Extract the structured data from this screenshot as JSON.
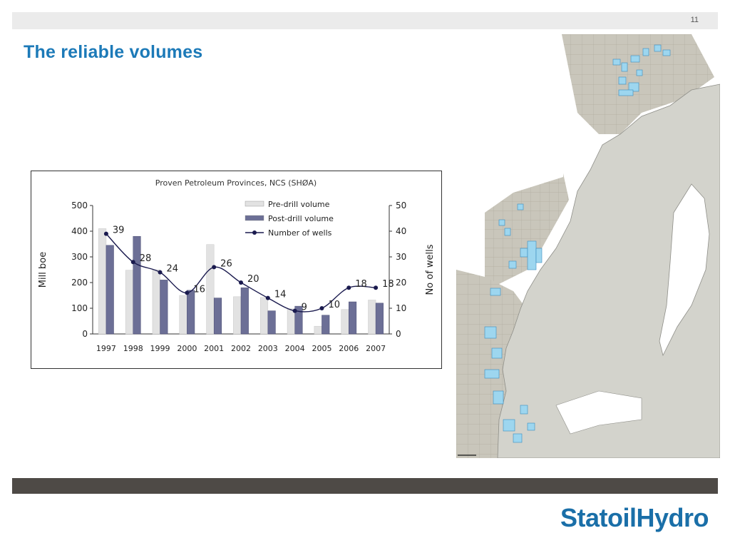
{
  "slide": {
    "page_number": "11",
    "title": "The reliable volumes",
    "logo_text": "StatoilHydro"
  },
  "colors": {
    "title": "#1c7ab8",
    "pre_drill_bar": "#e2e2e2",
    "post_drill_bar": "#6c6f96",
    "wells_line": "#1a1a4e",
    "footer_band": "#4e4a46",
    "map_sea": "#ffffff",
    "map_land": "#d0d0c8",
    "map_blocks": "#c9c6bb",
    "map_fields": "#9dd6ef"
  },
  "chart_data": {
    "type": "bar",
    "title": "Proven Petroleum Provinces, NCS (SHØA)",
    "categories": [
      "1997",
      "1998",
      "1999",
      "2000",
      "2001",
      "2002",
      "2003",
      "2004",
      "2005",
      "2006",
      "2007"
    ],
    "series": [
      {
        "name": "Pre-drill volume",
        "type": "bar",
        "axis": "left",
        "values": [
          410,
          248,
          250,
          150,
          348,
          145,
          142,
          98,
          30,
          95,
          132
        ]
      },
      {
        "name": "Post-drill volume",
        "type": "bar",
        "axis": "left",
        "values": [
          345,
          380,
          210,
          170,
          140,
          180,
          90,
          108,
          73,
          125,
          120
        ]
      },
      {
        "name": "Number of wells",
        "type": "line",
        "axis": "right",
        "values": [
          39,
          28,
          24,
          16,
          26,
          20,
          14,
          9,
          10,
          18,
          18
        ],
        "data_labels": [
          "39",
          "28",
          "24",
          "16",
          "26",
          "20",
          "14",
          "9",
          "10",
          "18",
          "18"
        ]
      }
    ],
    "ylabel": "Mill boe",
    "ylim": [
      0,
      500
    ],
    "yticks": [
      "0",
      "100",
      "200",
      "300",
      "400",
      "500"
    ],
    "y2label": "No of wells",
    "y2lim": [
      0,
      50
    ],
    "y2ticks": [
      "0",
      "10",
      "20",
      "30",
      "40",
      "50"
    ],
    "grid": false,
    "legend_position": "top-right"
  }
}
